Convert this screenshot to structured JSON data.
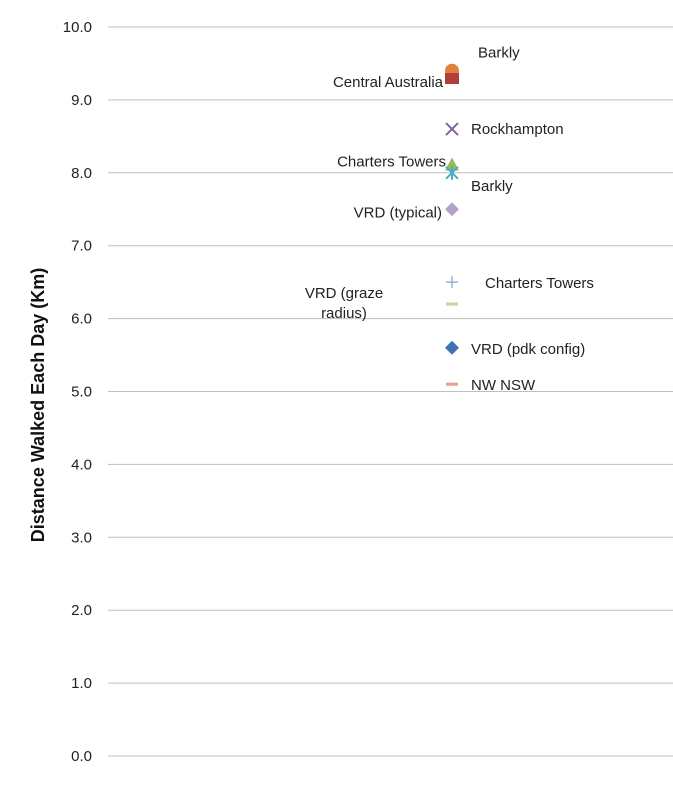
{
  "chart_data": {
    "type": "scatter",
    "title": "",
    "xlabel": "",
    "ylabel": "Distance Walked Each Day (Km)",
    "ylim": [
      0,
      10
    ],
    "yticks": [
      "0.0",
      "1.0",
      "2.0",
      "3.0",
      "4.0",
      "5.0",
      "6.0",
      "7.0",
      "8.0",
      "9.0",
      "10.0"
    ],
    "grid": true,
    "legend": "none",
    "points": [
      {
        "label": "Barkly",
        "y": 9.4,
        "marker": "circle",
        "color": "#e0823a"
      },
      {
        "label": "Central Australia",
        "y": 9.3,
        "marker": "square",
        "color": "#b43c3a"
      },
      {
        "label": "Rockhampton",
        "y": 8.6,
        "marker": "x",
        "color": "#8064a2"
      },
      {
        "label": "Charters Towers",
        "y": 8.1,
        "marker": "triangle",
        "color": "#9bbb59"
      },
      {
        "label": "Barkly",
        "y": 8.0,
        "marker": "star",
        "color": "#4bacc6"
      },
      {
        "label": "VRD (typical)",
        "y": 7.5,
        "marker": "diamond",
        "color": "#b3a2c7"
      },
      {
        "label": "Charters Towers",
        "y": 6.5,
        "marker": "plus",
        "color": "#95b3d7"
      },
      {
        "label": "VRD (graze radius)",
        "y": 6.2,
        "marker": "dash",
        "color": "#c3d69b"
      },
      {
        "label": "VRD (pdk config)",
        "y": 5.6,
        "marker": "diamond",
        "color": "#3f72b0"
      },
      {
        "label": "NW NSW",
        "y": 5.1,
        "marker": "dash",
        "color": "#e6a090"
      }
    ]
  }
}
